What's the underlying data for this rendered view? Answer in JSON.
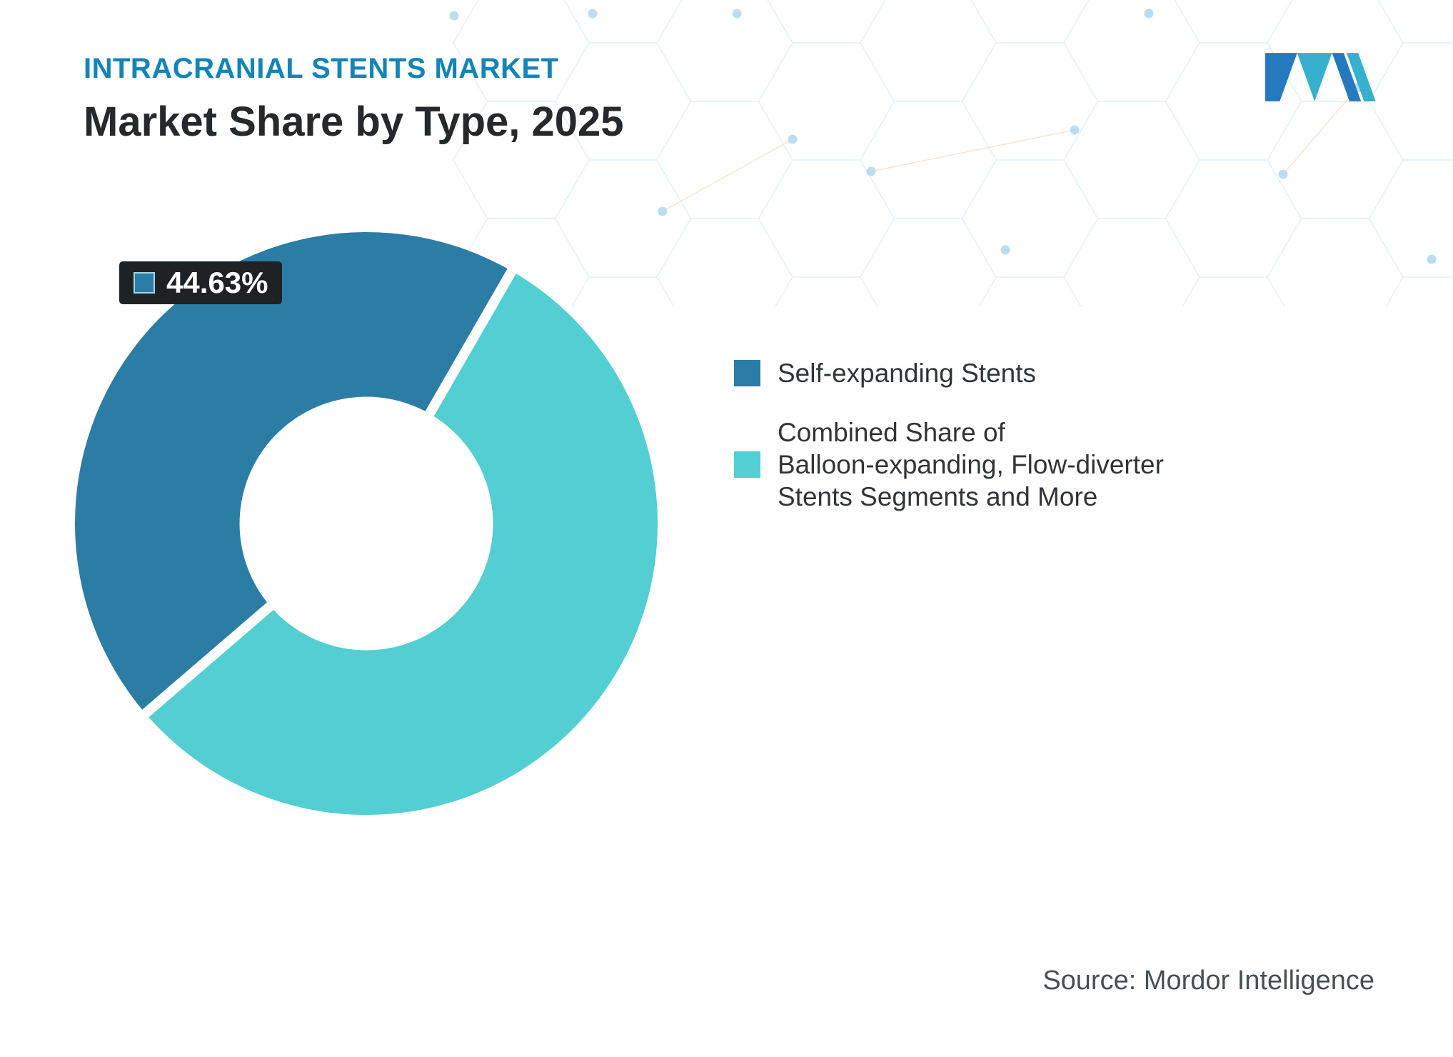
{
  "header": {
    "eyebrow": "INTRACRANIAL STENTS MARKET",
    "title": "Market Share by Type, 2025"
  },
  "colors": {
    "primary": "#2b7da5",
    "secondary": "#53ced2",
    "eyebrow_text": "#1484b8",
    "badge_bg": "#1f2225"
  },
  "chart_data": {
    "type": "pie",
    "donut": true,
    "title": "Market Share by Type, 2025",
    "series": [
      {
        "name": "Self-expanding Stents",
        "value": 44.63,
        "color": "#2b7da5"
      },
      {
        "name": "Combined Share of Balloon-expanding, Flow-diverter Stents Segments and More",
        "value": 55.37,
        "color": "#53ced2"
      }
    ],
    "data_label": {
      "text": "44.63%",
      "applies_to": "Self-expanding Stents"
    },
    "start_angle_deg": 229.3,
    "inner_radius_ratio": 0.435,
    "legend_position": "right"
  },
  "badge": {
    "value": "44.63%"
  },
  "legend": {
    "items": [
      {
        "label": "Self-expanding Stents",
        "color": "#2b7da5"
      },
      {
        "label": "Combined Share of\nBalloon-expanding, Flow-diverter\nStents Segments and More",
        "color": "#53ced2"
      }
    ]
  },
  "source": {
    "text": "Source: Mordor Intelligence"
  }
}
